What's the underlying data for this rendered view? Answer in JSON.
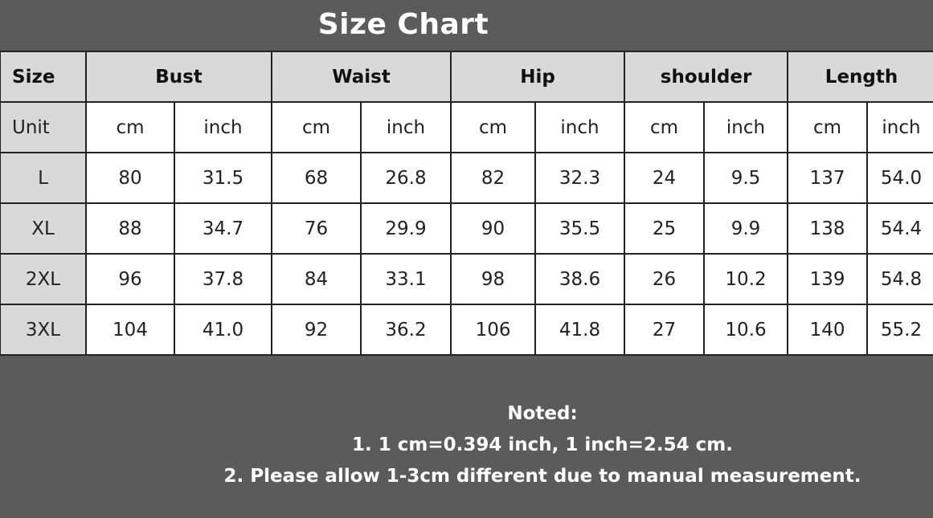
{
  "title": "Size Chart",
  "table": {
    "header": [
      "Size",
      "Bust",
      "Waist",
      "Hip",
      "shoulder",
      "Length"
    ],
    "unit_label": "Unit",
    "units": [
      "cm",
      "inch",
      "cm",
      "inch",
      "cm",
      "inch",
      "cm",
      "inch",
      "cm",
      "inch"
    ],
    "rows": [
      {
        "size": "L",
        "values": [
          "80",
          "31.5",
          "68",
          "26.8",
          "82",
          "32.3",
          "24",
          "9.5",
          "137",
          "54.0"
        ]
      },
      {
        "size": "XL",
        "values": [
          "88",
          "34.7",
          "76",
          "29.9",
          "90",
          "35.5",
          "25",
          "9.9",
          "138",
          "54.4"
        ]
      },
      {
        "size": "2XL",
        "values": [
          "96",
          "37.8",
          "84",
          "33.1",
          "98",
          "38.6",
          "26",
          "10.2",
          "139",
          "54.8"
        ]
      },
      {
        "size": "3XL",
        "values": [
          "104",
          "41.0",
          "92",
          "36.2",
          "106",
          "41.8",
          "27",
          "10.6",
          "140",
          "55.2"
        ]
      }
    ]
  },
  "notes": {
    "heading": "Noted:",
    "lines": [
      "1. 1 cm=0.394 inch, 1 inch=2.54 cm.",
      "2. Please allow 1-3cm different due to manual measurement."
    ]
  },
  "colors": {
    "background": "#5b5b5b",
    "header_fill": "#d9d9d9",
    "cell_fill": "#ffffff",
    "border": "#222222"
  }
}
